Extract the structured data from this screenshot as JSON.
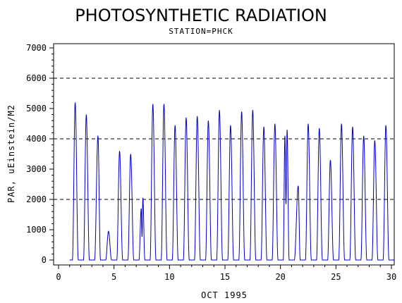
{
  "chart_data": {
    "type": "line",
    "title": "PHOTOSYNTHETIC RADIATION",
    "subtitle": "STATION=PHCK",
    "xlabel": "OCT 1995",
    "ylabel": "PAR, uEinstein/M2",
    "xlim": [
      0,
      30
    ],
    "ylim": [
      0,
      7000
    ],
    "x_ticks": [
      0,
      5,
      10,
      15,
      20,
      25,
      30
    ],
    "y_ticks": [
      0,
      1000,
      2000,
      3000,
      4000,
      5000,
      6000,
      7000
    ],
    "reference_lines": [
      2000,
      4000,
      6000
    ],
    "grid": false,
    "legend": "none",
    "series_color": "#0000cc",
    "daily_peaks": [
      {
        "day": 1,
        "peaks": [
          [
            1.5,
            5200
          ]
        ]
      },
      {
        "day": 2,
        "peaks": [
          [
            2.5,
            4800
          ]
        ]
      },
      {
        "day": 3,
        "peaks": [
          [
            3.55,
            4100
          ]
        ]
      },
      {
        "day": 4,
        "peaks": [
          [
            4.5,
            950
          ]
        ]
      },
      {
        "day": 5,
        "peaks": [
          [
            5.5,
            3600
          ]
        ]
      },
      {
        "day": 6,
        "peaks": [
          [
            6.5,
            3500
          ]
        ]
      },
      {
        "day": 7,
        "peaks": [
          [
            7.45,
            1700
          ],
          [
            7.6,
            2050
          ]
        ]
      },
      {
        "day": 8,
        "peaks": [
          [
            8.5,
            5150
          ]
        ]
      },
      {
        "day": 9,
        "peaks": [
          [
            9.5,
            5150
          ]
        ]
      },
      {
        "day": 10,
        "peaks": [
          [
            10.5,
            4450
          ]
        ]
      },
      {
        "day": 11,
        "peaks": [
          [
            11.5,
            4700
          ]
        ]
      },
      {
        "day": 12,
        "peaks": [
          [
            12.5,
            4750
          ]
        ]
      },
      {
        "day": 13,
        "peaks": [
          [
            13.5,
            4600
          ]
        ]
      },
      {
        "day": 14,
        "peaks": [
          [
            14.5,
            4950
          ]
        ]
      },
      {
        "day": 15,
        "peaks": [
          [
            15.5,
            4450
          ]
        ]
      },
      {
        "day": 16,
        "peaks": [
          [
            16.5,
            4900
          ]
        ]
      },
      {
        "day": 17,
        "peaks": [
          [
            17.5,
            4950
          ]
        ]
      },
      {
        "day": 18,
        "peaks": [
          [
            18.5,
            4400
          ]
        ]
      },
      {
        "day": 19,
        "peaks": [
          [
            19.5,
            4500
          ]
        ]
      },
      {
        "day": 20,
        "peaks": [
          [
            20.4,
            4100
          ],
          [
            20.6,
            4300
          ]
        ]
      },
      {
        "day": 21,
        "peaks": [
          [
            21.6,
            2450
          ]
        ]
      },
      {
        "day": 22,
        "peaks": [
          [
            22.5,
            4500
          ]
        ]
      },
      {
        "day": 23,
        "peaks": [
          [
            23.5,
            4350
          ]
        ]
      },
      {
        "day": 24,
        "peaks": [
          [
            24.5,
            3300
          ]
        ]
      },
      {
        "day": 25,
        "peaks": [
          [
            25.5,
            4500
          ]
        ]
      },
      {
        "day": 26,
        "peaks": [
          [
            26.5,
            4400
          ]
        ]
      },
      {
        "day": 27,
        "peaks": [
          [
            27.5,
            4100
          ]
        ]
      },
      {
        "day": 28,
        "peaks": [
          [
            28.5,
            3950
          ]
        ]
      },
      {
        "day": 29,
        "peaks": [
          [
            29.5,
            4450
          ]
        ]
      }
    ]
  }
}
